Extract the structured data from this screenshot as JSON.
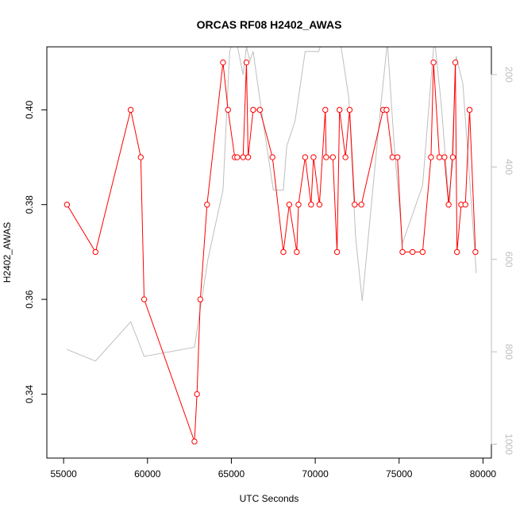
{
  "chart_data": {
    "type": "line",
    "title": "ORCAS RF08 H2402_AWAS",
    "xlabel": "UTC Seconds",
    "ylabel": "H2402_AWAS",
    "xlim": [
      54000,
      80500
    ],
    "ylim": [
      0.3265,
      0.4133
    ],
    "xticks": [
      55000,
      60000,
      65000,
      70000,
      75000,
      80000
    ],
    "yticks": [
      0.34,
      0.36,
      0.38,
      0.4
    ],
    "xtick_labels": [
      "55000",
      "60000",
      "65000",
      "70000",
      "75000",
      "80000"
    ],
    "ytick_labels": [
      "0.34",
      "0.36",
      "0.38",
      "0.40"
    ],
    "y2lim": [
      1030,
      140
    ],
    "y2ticks": [
      200,
      400,
      600,
      800,
      1000
    ],
    "y2tick_labels": [
      "200",
      "400",
      "600",
      "800",
      "1000"
    ],
    "grid": false,
    "colors": {
      "primary": "#ff0000",
      "secondary": "#bebebe"
    },
    "series": [
      {
        "axis": "left",
        "marker": "open-circle",
        "color": "#ff0000",
        "x": [
          55200,
          56900,
          59000,
          59600,
          59800,
          62800,
          62950,
          63150,
          63550,
          64500,
          64800,
          65200,
          65350,
          65700,
          65900,
          66000,
          66300,
          66700,
          67450,
          68100,
          68450,
          68900,
          69000,
          69400,
          69750,
          69900,
          70250,
          70600,
          70650,
          71050,
          71300,
          71450,
          71800,
          72050,
          72350,
          72750,
          74050,
          74250,
          74600,
          74900,
          75200,
          75800,
          76400,
          76900,
          77050,
          77400,
          77700,
          77950,
          78200,
          78350,
          78450,
          78700,
          78950,
          79200,
          79550
        ],
        "y": [
          0.38,
          0.37,
          0.4,
          0.39,
          0.36,
          0.33,
          0.34,
          0.36,
          0.38,
          0.41,
          0.4,
          0.39,
          0.39,
          0.39,
          0.41,
          0.39,
          0.4,
          0.4,
          0.39,
          0.37,
          0.38,
          0.37,
          0.38,
          0.39,
          0.38,
          0.39,
          0.38,
          0.4,
          0.39,
          0.39,
          0.37,
          0.4,
          0.39,
          0.4,
          0.38,
          0.38,
          0.4,
          0.4,
          0.39,
          0.39,
          0.37,
          0.37,
          0.37,
          0.39,
          0.41,
          0.39,
          0.39,
          0.38,
          0.39,
          0.41,
          0.37,
          0.38,
          0.38,
          0.4,
          0.37
        ]
      },
      {
        "axis": "right",
        "color": "#bebebe",
        "x": [
          55200,
          56900,
          59000,
          59800,
          62800,
          63600,
          64500,
          64900,
          65200,
          65700,
          65900,
          66100,
          66300,
          66800,
          67500,
          68100,
          68300,
          68800,
          69400,
          70200,
          70500,
          71100,
          71500,
          72000,
          72400,
          72800,
          73900,
          74300,
          74700,
          75200,
          76400,
          77100,
          77500,
          78000,
          78400,
          78800,
          79600
        ],
        "y": [
          795,
          820,
          735,
          810,
          790,
          600,
          450,
          150,
          110,
          200,
          140,
          170,
          150,
          280,
          450,
          450,
          355,
          300,
          150,
          150,
          120,
          140,
          130,
          250,
          550,
          690,
          270,
          130,
          350,
          565,
          440,
          120,
          260,
          490,
          160,
          220,
          630
        ]
      }
    ]
  }
}
